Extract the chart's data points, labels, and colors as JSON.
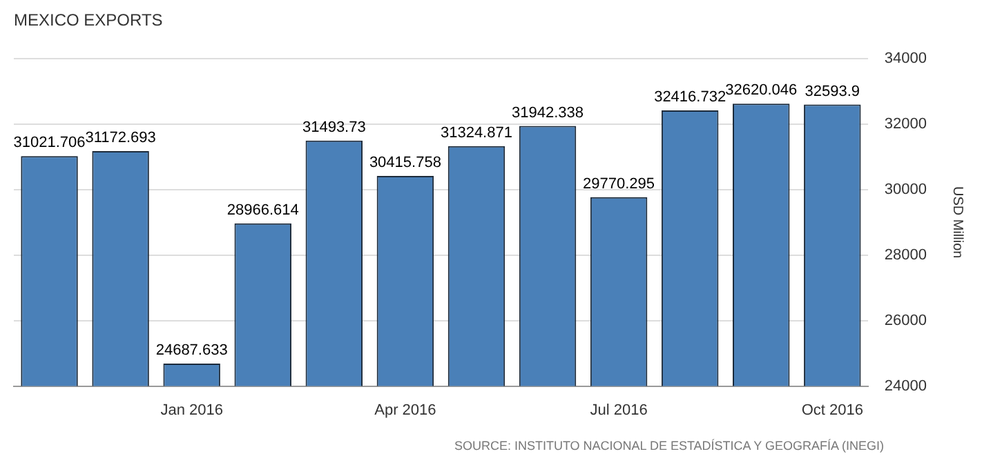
{
  "chart_data": {
    "type": "bar",
    "title": "MEXICO EXPORTS",
    "ylabel": "USD Million",
    "categories": [
      null,
      null,
      "Jan 2016",
      null,
      null,
      "Apr 2016",
      null,
      null,
      "Jul 2016",
      null,
      null,
      "Oct 2016"
    ],
    "values": [
      31021.706,
      31172.693,
      24687.633,
      28966.614,
      31493.73,
      30415.758,
      31324.871,
      31942.338,
      29770.295,
      32416.732,
      32620.046,
      32593.9
    ],
    "color": "#4a80b8",
    "ylim": [
      24000,
      34000
    ],
    "yticks": [
      24000,
      26000,
      28000,
      30000,
      32000,
      34000
    ],
    "grid": "y",
    "data_labels": true,
    "annotations": [
      "SOURCE: INSTITUTO NACIONAL DE ESTADÍSTICA Y GEOGRAFÍA (INEGI)"
    ]
  }
}
